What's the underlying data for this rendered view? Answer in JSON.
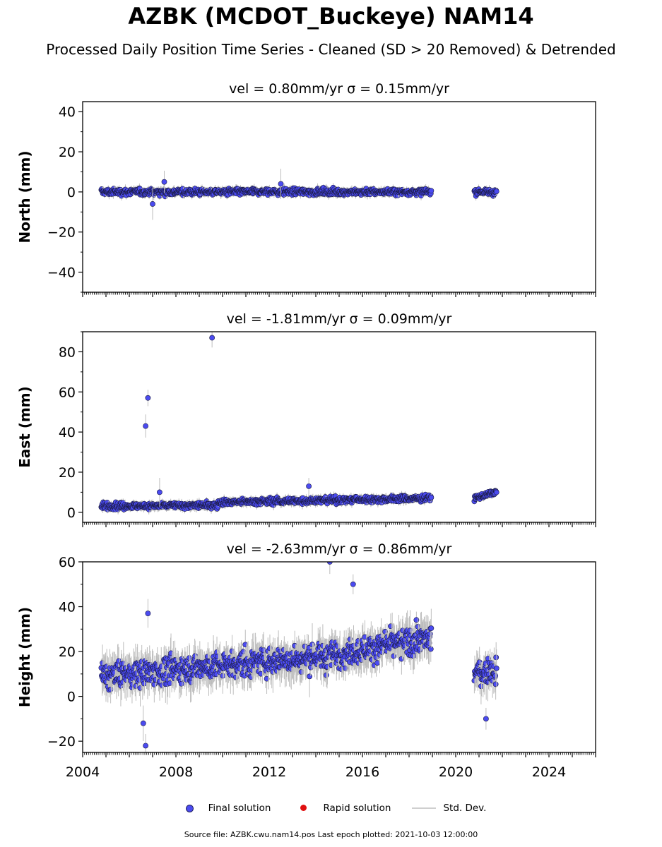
{
  "title": "AZBK (MCDOT_Buckeye) NAM14",
  "subtitle": "Processed Daily Position Time Series - Cleaned (SD > 20 Removed) & Detrended",
  "legend": {
    "final": "Final solution",
    "rapid": "Rapid solution",
    "std": "Std. Dev."
  },
  "footer": "Source file: AZBK.cwu.nam14.pos  Last epoch plotted: 2021-10-03 12:00:00",
  "colors": {
    "final": "#4b4bf0",
    "rapid": "#e01010",
    "std": "#bdbdbd"
  },
  "chart_data": [
    {
      "type": "scatter",
      "title": "vel = 0.80mm/yr   σ = 0.15mm/yr",
      "ylabel": "North (mm)",
      "xlim": [
        2004,
        2026
      ],
      "ylim": [
        -50,
        45
      ],
      "yticks": [
        -40,
        -20,
        0,
        20,
        40
      ],
      "segments": [
        {
          "x_start": 2004.8,
          "x_end": 2018.95,
          "mean": 0,
          "spread": 2.0
        },
        {
          "x_start": 2020.8,
          "x_end": 2021.75,
          "mean": 0,
          "spread": 1.8
        }
      ],
      "outliers": [
        [
          2007.0,
          -6
        ],
        [
          2007.5,
          5
        ],
        [
          2012.5,
          4
        ]
      ]
    },
    {
      "type": "scatter",
      "title": "vel = -1.81mm/yr   σ = 0.09mm/yr",
      "ylabel": "East (mm)",
      "xlim": [
        2004,
        2026
      ],
      "ylim": [
        -5,
        90
      ],
      "yticks": [
        0,
        20,
        40,
        60,
        80
      ],
      "segments": [
        {
          "x_start": 2004.8,
          "x_end": 2009.8,
          "mean_start": 3,
          "mean_end": 3.5,
          "spread": 2.0
        },
        {
          "x_start": 2009.8,
          "x_end": 2018.95,
          "mean_start": 5,
          "mean_end": 7,
          "spread": 2.0
        },
        {
          "x_start": 2020.8,
          "x_end": 2021.75,
          "mean_start": 7,
          "mean_end": 10,
          "spread": 1.5
        }
      ],
      "outliers": [
        [
          2006.7,
          43
        ],
        [
          2006.8,
          57
        ],
        [
          2009.55,
          87
        ],
        [
          2007.3,
          10
        ],
        [
          2013.7,
          13
        ]
      ]
    },
    {
      "type": "scatter",
      "title": "vel = -2.63mm/yr   σ = 0.86mm/yr",
      "ylabel": "Height (mm)",
      "xlim": [
        2004,
        2026
      ],
      "ylim": [
        -25,
        60
      ],
      "yticks": [
        -20,
        0,
        20,
        40,
        60
      ],
      "xticks": [
        2004,
        2008,
        2012,
        2016,
        2020,
        2024
      ],
      "segments": [
        {
          "x_start": 2004.8,
          "x_end": 2014.4,
          "mean_start": 9,
          "mean_end": 18,
          "spread": 7.5
        },
        {
          "x_start": 2014.4,
          "x_end": 2018.95,
          "mean_start": 18,
          "mean_end": 26,
          "spread": 7.5
        },
        {
          "x_start": 2020.8,
          "x_end": 2021.75,
          "mean_start": 10,
          "mean_end": 12,
          "spread": 7
        }
      ],
      "outliers": [
        [
          2006.6,
          -12
        ],
        [
          2006.7,
          -22
        ],
        [
          2014.6,
          60
        ],
        [
          2015.6,
          50
        ],
        [
          2021.3,
          -10
        ],
        [
          2006.8,
          37
        ]
      ]
    }
  ]
}
